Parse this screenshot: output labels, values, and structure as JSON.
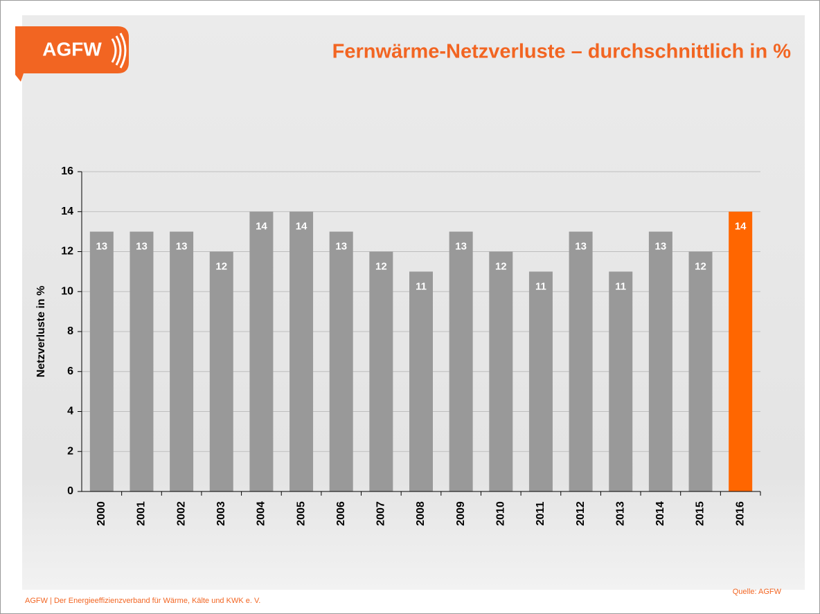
{
  "logo": "AGFW",
  "footer": "AGFW | Der Energieeffizienzverband für Wärme, Kälte und KWK e. V.",
  "source": "Quelle:  AGFW",
  "chart_data": {
    "type": "bar",
    "title": "Fernwärme-Netzverluste – durchschnittlich in %",
    "y_label": "Netzverluste in %",
    "categories": [
      "2000",
      "2001",
      "2002",
      "2003",
      "2004",
      "2005",
      "2006",
      "2007",
      "2008",
      "2009",
      "2010",
      "2011",
      "2012",
      "2013",
      "2014",
      "2015",
      "2016"
    ],
    "values": [
      13,
      13,
      13,
      12,
      14,
      14,
      13,
      12,
      11,
      13,
      12,
      11,
      13,
      11,
      13,
      12,
      14
    ],
    "colors": [
      "#999999",
      "#999999",
      "#999999",
      "#999999",
      "#999999",
      "#999999",
      "#999999",
      "#999999",
      "#999999",
      "#999999",
      "#999999",
      "#999999",
      "#999999",
      "#999999",
      "#999999",
      "#999999",
      "#ff6600"
    ],
    "ylim": [
      0,
      16
    ],
    "yticks": [
      0,
      2,
      4,
      6,
      8,
      10,
      12,
      14,
      16
    ],
    "grid": true
  }
}
